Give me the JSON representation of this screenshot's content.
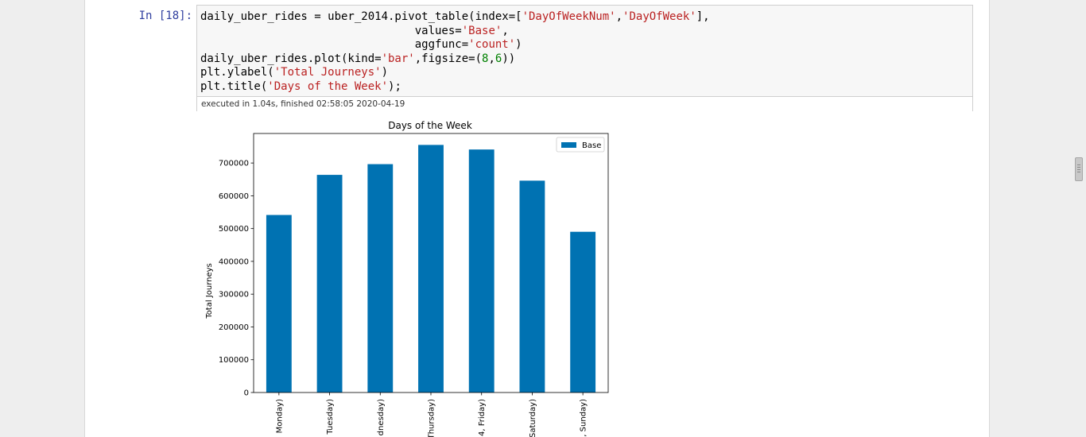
{
  "cell": {
    "prompt": "In [18]:",
    "code_lines": [
      [
        {
          "t": "daily_uber_rides = uber_2014.pivot_table(index=["
        },
        {
          "t": "'DayOfWeekNum'",
          "c": "str"
        },
        {
          "t": ","
        },
        {
          "t": "'DayOfWeek'",
          "c": "str"
        },
        {
          "t": "],"
        }
      ],
      [
        {
          "t": "                                values="
        },
        {
          "t": "'Base'",
          "c": "str"
        },
        {
          "t": ","
        }
      ],
      [
        {
          "t": "                                aggfunc="
        },
        {
          "t": "'count'",
          "c": "str"
        },
        {
          "t": ")"
        }
      ],
      [
        {
          "t": "daily_uber_rides.plot(kind="
        },
        {
          "t": "'bar'",
          "c": "str"
        },
        {
          "t": ",figsize=("
        },
        {
          "t": "8",
          "c": "num"
        },
        {
          "t": ","
        },
        {
          "t": "6",
          "c": "num"
        },
        {
          "t": "))"
        }
      ],
      [
        {
          "t": "plt.ylabel("
        },
        {
          "t": "'Total Journeys'",
          "c": "str"
        },
        {
          "t": ")"
        }
      ],
      [
        {
          "t": "plt.title("
        },
        {
          "t": "'Days of the Week'",
          "c": "str"
        },
        {
          "t": ");"
        }
      ]
    ],
    "exec_status": "executed in 1.04s, finished 02:58:05 2020-04-19"
  },
  "chart_data": {
    "type": "bar",
    "title": "Days of the Week",
    "ylabel": "Total Journeys",
    "xlabel": "",
    "categories": [
      "Monday)",
      "Tuesday)",
      "dnesday)",
      "Thursday)",
      "4, Friday)",
      "Saturday)",
      ", Sunday)"
    ],
    "series": [
      {
        "name": "Base",
        "values": [
          541472,
          663789,
          696488,
          755145,
          741139,
          646114,
          490180
        ],
        "color": "#0072b2"
      }
    ],
    "ylim": [
      0,
      790000
    ],
    "yticks": [
      0,
      100000,
      200000,
      300000,
      400000,
      500000,
      600000,
      700000
    ],
    "grid": false,
    "legend": "top-right"
  }
}
